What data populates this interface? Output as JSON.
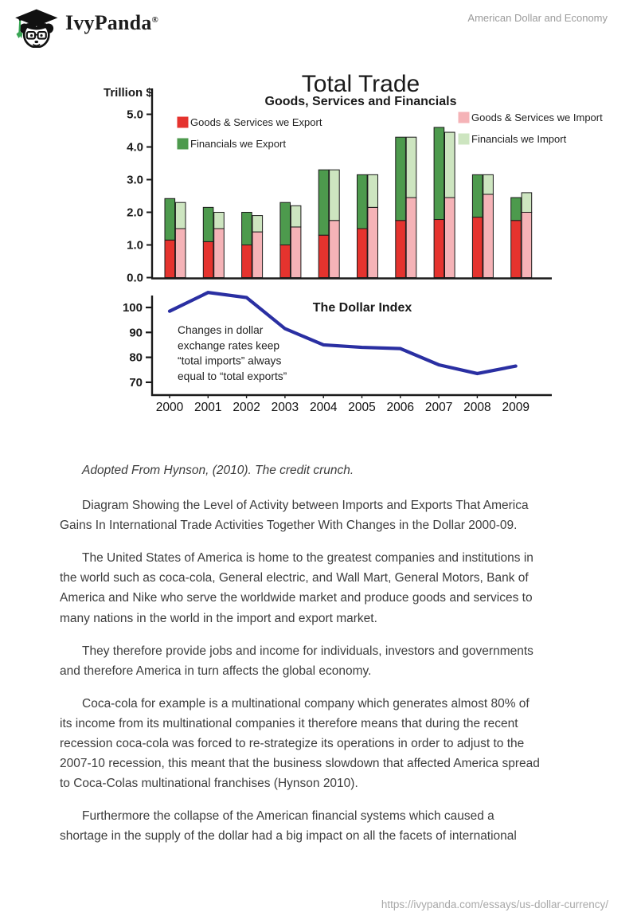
{
  "header": {
    "brand": "IvyPanda",
    "brand_mark": "®",
    "doc_title": "American Dollar and Economy"
  },
  "chart_data": [
    {
      "type": "bar",
      "title": "Total Trade",
      "subtitle": "Goods, Services and Financials",
      "ylabel": "Trillion $",
      "ylim": [
        0,
        5
      ],
      "ytick_labels": [
        "0.0",
        "1.0",
        "2.0",
        "3.0",
        "4.0",
        "5.0"
      ],
      "categories": [
        "2000",
        "2001",
        "2002",
        "2003",
        "2004",
        "2005",
        "2006",
        "2007",
        "2008",
        "2009"
      ],
      "series": [
        {
          "name": "Goods & Services we Export",
          "color": "#e5332e",
          "stack": "export",
          "values": [
            1.15,
            1.1,
            1.0,
            1.0,
            1.3,
            1.5,
            1.75,
            1.78,
            1.85,
            1.75
          ]
        },
        {
          "name": "Financials we Export",
          "color": "#4d9a4d",
          "stack": "export",
          "values": [
            1.27,
            1.05,
            1.0,
            1.3,
            2.0,
            1.65,
            2.55,
            2.82,
            1.3,
            0.7
          ]
        },
        {
          "name": "Goods & Services we Import",
          "color": "#f5b3b7",
          "stack": "import",
          "values": [
            1.5,
            1.5,
            1.4,
            1.55,
            1.75,
            2.15,
            2.45,
            2.45,
            2.55,
            2.0
          ]
        },
        {
          "name": "Financials we Import",
          "color": "#cde5c0",
          "stack": "import",
          "values": [
            0.8,
            0.5,
            0.5,
            0.65,
            1.55,
            1.0,
            1.85,
            2.0,
            0.6,
            0.6
          ]
        }
      ],
      "legend_position": "top",
      "grid": false
    },
    {
      "type": "line",
      "title": "The Dollar Index",
      "annotation": "Changes in dollar\nexchange rates keep\n“total imports” always\nequal to “total exports”",
      "x": [
        "2000",
        "2001",
        "2002",
        "2003",
        "2004",
        "2005",
        "2006",
        "2007",
        "2008",
        "2009"
      ],
      "values": [
        98.5,
        106,
        104,
        91.5,
        85,
        84,
        83.5,
        77,
        73.5,
        76.5
      ],
      "yticks": [
        100,
        90,
        80,
        70
      ],
      "ylim": [
        67,
        107
      ],
      "color": "#2a2fa2",
      "grid": false
    }
  ],
  "body": {
    "caption": "Adopted From Hynson, (2010). The credit crunch.",
    "paragraphs": [
      "Diagram Showing the Level of Activity between Imports and Exports That America\nGains In International Trade Activities Together With Changes in the Dollar 2000-09.",
      "The United States of America is home to the greatest companies and institutions in\nthe world such as coca-cola, General electric, and Wall Mart, General Motors, Bank of\nAmerica and Nike who serve the worldwide market and produce goods and services to\nmany nations in the world in the import and export market.",
      "They therefore provide jobs and income for individuals, investors and governments\nand therefore America in turn affects the global economy.",
      "Coca-cola for example is a multinational company which generates almost 80% of\nits income from its multinational companies it therefore means that during the recent\nrecession coca-cola was forced to re-strategize its operations in order to adjust to the\n2007-10 recession, this meant that the business slowdown that affected America spread\nto Coca-Colas multinational franchises (Hynson 2010).",
      "Furthermore the collapse of the American financial systems which caused a\nshortage in the supply of the dollar had a big impact on all the facets of international"
    ]
  },
  "footer": {
    "url": "https://ivypanda.com/essays/us-dollar-currency/"
  }
}
